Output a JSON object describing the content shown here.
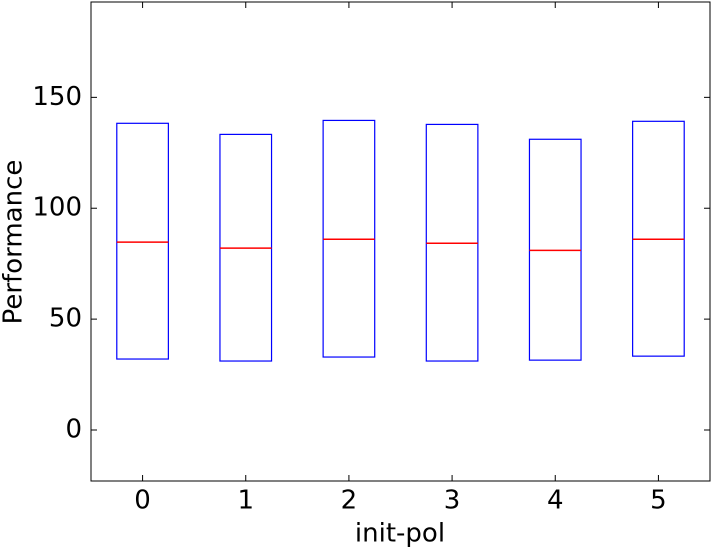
{
  "chart_data": {
    "type": "box",
    "xlabel": "init-pol",
    "ylabel": "Performance",
    "categories": [
      "0",
      "1",
      "2",
      "3",
      "4",
      "5"
    ],
    "boxes": [
      {
        "q1": 32,
        "median": 84.7,
        "q3": 138.3
      },
      {
        "q1": 31.1,
        "median": 82,
        "q3": 133.3
      },
      {
        "q1": 32.9,
        "median": 86,
        "q3": 139.6
      },
      {
        "q1": 31.1,
        "median": 84.2,
        "q3": 137.8
      },
      {
        "q1": 31.5,
        "median": 81,
        "q3": 131.1
      },
      {
        "q1": 33.3,
        "median": 86,
        "q3": 139.2
      }
    ],
    "box_color": "#0000ff",
    "median_color": "#ff0000",
    "ylim": [
      -23,
      193
    ],
    "yticks": [
      0,
      50,
      100,
      150
    ],
    "grid": false
  }
}
